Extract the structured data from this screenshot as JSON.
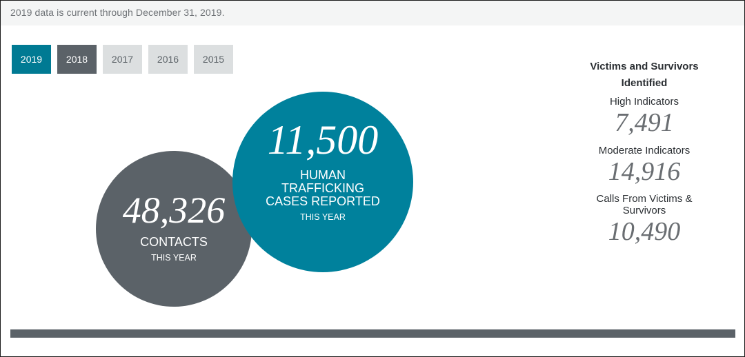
{
  "header": {
    "data_note": "2019 data is current through December 31, 2019."
  },
  "year_tabs": [
    {
      "label": "2019",
      "state": "active"
    },
    {
      "label": "2018",
      "state": "hover"
    },
    {
      "label": "2017",
      "state": "idle"
    },
    {
      "label": "2016",
      "state": "idle"
    },
    {
      "label": "2015",
      "state": "idle"
    }
  ],
  "contacts": {
    "number": "48,326",
    "label": "CONTACTS",
    "sublabel": "THIS YEAR",
    "color": "#5b6268"
  },
  "cases": {
    "number": "11,500",
    "label": "HUMAN TRAFFICKING CASES REPORTED",
    "sublabel": "THIS YEAR",
    "color": "#00819c"
  },
  "victims": {
    "heading": "Victims and Survivors Identified",
    "stats": [
      {
        "label": "High Indicators",
        "value": "7,491"
      },
      {
        "label": "Moderate Indicators",
        "value": "14,916"
      },
      {
        "label": "Calls From Victims & Survivors",
        "value": "10,490"
      }
    ]
  },
  "colors": {
    "accent_teal": "#007a93",
    "dark_gray": "#5b6268",
    "light_gray": "#dcdfe0"
  }
}
